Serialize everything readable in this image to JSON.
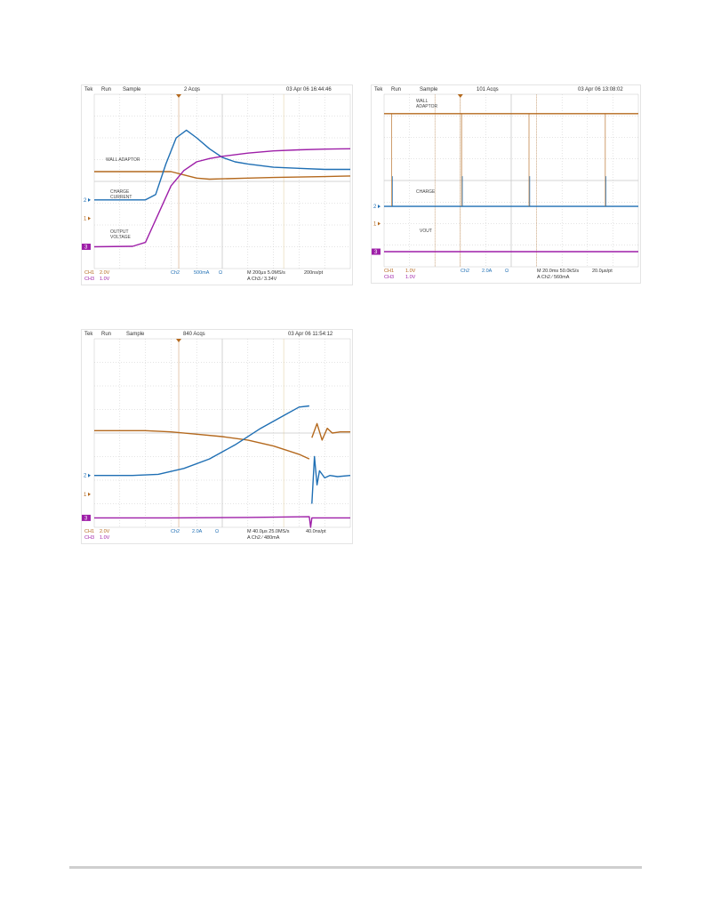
{
  "colors": {
    "ch1": "#b4691e",
    "ch2": "#1f6fb4",
    "ch3": "#9e1fa8",
    "grid": "#c8c8c8",
    "trig": "#b4691e",
    "text": "#333333"
  },
  "chart_data": [
    {
      "type": "line",
      "header": {
        "brand": "Tek",
        "state": "Run",
        "mode": "Sample",
        "acqs": "2 Acqs",
        "datetime": "03 Apr 06 16:44:46"
      },
      "footer": {
        "ch1": "CH1",
        "ch1_scale": "2.0V",
        "ch3": "CH3",
        "ch3_scale": "1.0V",
        "ch2": "Ch2",
        "ch2_scale": "500mA",
        "ohm": "Ω",
        "timebase": "M 200μs 5.0MS/s",
        "trigger": "A  Ch3  ∕  3.34V",
        "rec": "200ns/pt"
      },
      "labels": [
        {
          "text": "WALL ADAPTOR"
        },
        {
          "text": "CHARGE CURRENT"
        },
        {
          "text": "OUTPUT VOLTAGE"
        }
      ],
      "markers": {
        "ch2": "2",
        "ch1": "1",
        "ch3": "3"
      },
      "xlim": [
        0,
        10
      ],
      "ylim": [
        -4,
        4
      ],
      "series": [
        {
          "channel": "ch1",
          "x": [
            0,
            3.0,
            3.5,
            4.0,
            4.5,
            5.0,
            6.0,
            7.0,
            8.0,
            9.0,
            10
          ],
          "y": [
            0.45,
            0.45,
            0.3,
            0.15,
            0.1,
            0.12,
            0.15,
            0.18,
            0.2,
            0.22,
            0.25
          ]
        },
        {
          "channel": "ch2",
          "x": [
            0,
            2.0,
            2.4,
            2.8,
            3.2,
            3.6,
            4.0,
            4.5,
            5.0,
            5.5,
            6.0,
            7.0,
            8.0,
            9.0,
            10
          ],
          "y": [
            -0.85,
            -0.85,
            -0.6,
            0.8,
            2.0,
            2.35,
            2.0,
            1.5,
            1.1,
            0.9,
            0.8,
            0.65,
            0.6,
            0.55,
            0.55
          ]
        },
        {
          "channel": "ch3",
          "x": [
            0,
            1.5,
            2.0,
            2.5,
            3.0,
            3.5,
            4.0,
            4.5,
            5.0,
            6.0,
            7.0,
            8.0,
            9.0,
            10
          ],
          "y": [
            -3.0,
            -2.98,
            -2.8,
            -1.5,
            -0.2,
            0.5,
            0.9,
            1.05,
            1.15,
            1.3,
            1.4,
            1.45,
            1.48,
            1.5
          ]
        }
      ]
    },
    {
      "type": "line",
      "header": {
        "brand": "Tek",
        "state": "Run",
        "mode": "Sample",
        "acqs": "101 Acqs",
        "datetime": "03 Apr 06 13:08:02"
      },
      "footer": {
        "ch1": "CH1",
        "ch1_scale": "1.0V",
        "ch3": "CH3",
        "ch3_scale": "1.0V",
        "ch2": "Ch2",
        "ch2_scale": "2.0A",
        "ohm": "Ω",
        "timebase": "M 20.0ms 50.0kS/s",
        "trigger": "A  Ch2  ∕  560mA",
        "rec": "20.0μs/pt"
      },
      "labels": [
        {
          "text": "WALL ADAPTOR"
        },
        {
          "text": "CHARGE"
        },
        {
          "text": "VOUT"
        }
      ],
      "markers": {
        "ch2": "2",
        "ch1": "1",
        "ch3": "3"
      },
      "xlim": [
        0,
        10
      ],
      "ylim": [
        -4,
        4
      ],
      "series": [
        {
          "channel": "ch1",
          "x": [
            0,
            10
          ],
          "y": [
            3.1,
            3.1
          ]
        },
        {
          "channel": "ch2",
          "x": [
            0,
            10
          ],
          "y": [
            -1.2,
            -1.2
          ]
        },
        {
          "channel": "ch3",
          "x": [
            0,
            10
          ],
          "y": [
            -3.3,
            -3.3
          ]
        }
      ]
    },
    {
      "type": "line",
      "header": {
        "brand": "Tek",
        "state": "Run",
        "mode": "Sample",
        "acqs": "840 Acqs",
        "datetime": "03 Apr 06 11:54:12"
      },
      "footer": {
        "ch1": "CH1",
        "ch1_scale": "2.0V",
        "ch3": "CH3",
        "ch3_scale": "1.0V",
        "ch2": "Ch2",
        "ch2_scale": "2.0A",
        "ohm": "Ω",
        "timebase": "M 40.0μs 25.0MS/s",
        "trigger": "A  Ch2  ∕  480mA",
        "rec": "40.0ns/pt"
      },
      "labels": [],
      "markers": {
        "ch2": "2",
        "ch1": "1",
        "ch3": "3"
      },
      "xlim": [
        0,
        10
      ],
      "ylim": [
        -4,
        4
      ],
      "series": [
        {
          "channel": "ch1",
          "x": [
            0,
            2,
            3,
            4,
            5,
            6,
            7,
            8,
            8.4
          ],
          "y": [
            0.1,
            0.1,
            0.05,
            -0.05,
            -0.15,
            -0.3,
            -0.55,
            -0.9,
            -1.1
          ]
        },
        {
          "channel": "ch1",
          "x": [
            8.5,
            8.7,
            8.9,
            9.1,
            9.3,
            9.6,
            10
          ],
          "y": [
            -0.2,
            0.4,
            -0.3,
            0.2,
            0.0,
            0.05,
            0.05
          ]
        },
        {
          "channel": "ch2",
          "x": [
            0,
            1.5,
            2.5,
            3.5,
            4.5,
            5.5,
            6.5,
            7.5,
            8.0,
            8.4
          ],
          "y": [
            -1.8,
            -1.8,
            -1.75,
            -1.5,
            -1.1,
            -0.5,
            0.2,
            0.8,
            1.1,
            1.15
          ]
        },
        {
          "channel": "ch2",
          "x": [
            8.5,
            8.6,
            8.7,
            8.8,
            9.0,
            9.2,
            9.5,
            10
          ],
          "y": [
            -3.0,
            -1.0,
            -2.2,
            -1.6,
            -1.9,
            -1.8,
            -1.85,
            -1.8
          ]
        },
        {
          "channel": "ch3",
          "x": [
            0,
            3,
            6,
            8.4,
            8.45,
            8.5,
            10
          ],
          "y": [
            -3.6,
            -3.6,
            -3.58,
            -3.55,
            -4.0,
            -3.6,
            -3.6
          ]
        }
      ]
    }
  ]
}
